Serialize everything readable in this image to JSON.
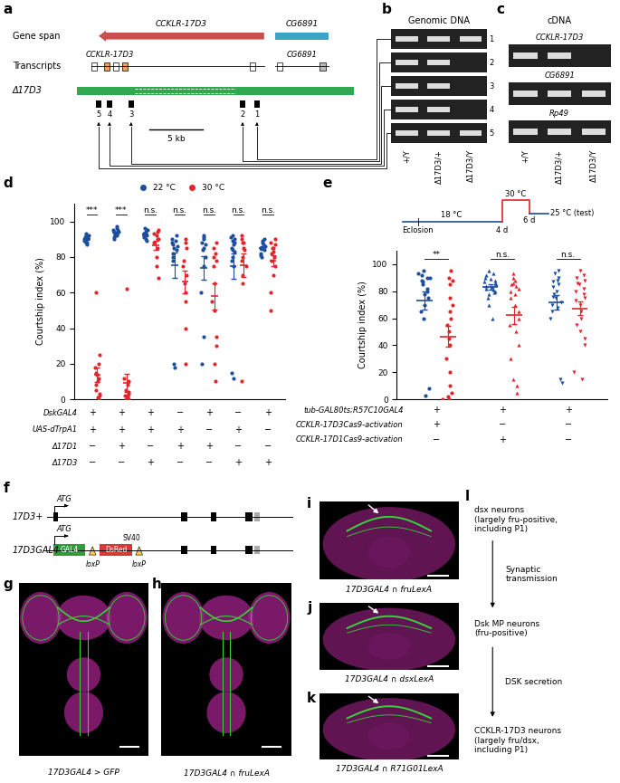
{
  "panels": {
    "a": {
      "label": "a",
      "gene_span_label": "Gene span",
      "genes": [
        "CCKLR-17D3",
        "CG6891"
      ],
      "transcripts_label": "Transcripts",
      "transcript_genes": [
        "CCKLR-17D3",
        "CG6891"
      ],
      "deletion_label": "Δ17D3",
      "scale_bar": "5 kb",
      "primers": [
        "5",
        "4",
        "3",
        "2",
        "1"
      ]
    },
    "b": {
      "label": "b",
      "title": "Genomic DNA",
      "rows": [
        "1",
        "2",
        "3",
        "4",
        "5"
      ],
      "lanes": [
        "+/Y",
        "Δ17D3/+",
        "Δ17D3/Y"
      ],
      "bands": [
        [
          1,
          1,
          1
        ],
        [
          1,
          1,
          0
        ],
        [
          1,
          1,
          0
        ],
        [
          1,
          1,
          0
        ],
        [
          1,
          1,
          1
        ]
      ]
    },
    "c": {
      "label": "c",
      "title": "cDNA",
      "rows": [
        "CCKLR-17D3",
        "CG6891",
        "Rp49"
      ],
      "lanes": [
        "+/Y",
        "Δ17D3/+",
        "Δ17D3/Y"
      ],
      "bands": [
        [
          1,
          1,
          0
        ],
        [
          1,
          1,
          1
        ],
        [
          1,
          1,
          1
        ]
      ]
    },
    "f": {
      "label": "f",
      "wild_type": "17D3+",
      "knock_in": "17D3GAL4",
      "atg": "ATG",
      "gal4": "GAL4",
      "dsred": "DsRed",
      "sv40": "SV40",
      "loxp": "loxP"
    },
    "images": [
      {
        "label": "g",
        "caption": "17D3GAL4 > GFP"
      },
      {
        "label": "h",
        "caption": "17D3GAL4 ∩ fruLexA"
      },
      {
        "label": "i",
        "caption": "17D3GAL4 ∩ fruLexA"
      },
      {
        "label": "j",
        "caption": "17D3GAL4 ∩ dsxLexA"
      },
      {
        "label": "k",
        "caption": "17D3GAL4 ∩ R71G01LexA"
      }
    ],
    "l": {
      "label": "l",
      "nodes": [
        "dsx neurons\n(largely fru-positive,\nincluding P1)",
        "Dsk MP neurons\n(fru-positive)",
        "CCKLR-17D3 neurons\n(largely fru/dsx,\nincluding P1)"
      ],
      "edges": [
        "Synaptic\ntransmission",
        "DSK secretion"
      ]
    }
  },
  "chart_data": [
    {
      "type": "strip",
      "panel_label": "d",
      "ylabel": "Courtship index (%)",
      "ylim": [
        0,
        110
      ],
      "yticks": [
        0,
        20,
        40,
        60,
        80,
        100
      ],
      "tick_labels": "y",
      "series_names": [
        "22 °C",
        "30 °C"
      ],
      "colors": [
        "#1d4e9e",
        "#e3242b"
      ],
      "marker": "circle",
      "legend": "upper center",
      "groups": [
        {
          "significance": "***",
          "series": [
            {
              "values": [
                90,
                91,
                92,
                88,
                89,
                93,
                87,
                90,
                91,
                89,
                92,
                90,
                88,
                91
              ],
              "mean": 90.1,
              "sem": 0.4
            },
            {
              "values": [
                0,
                2,
                5,
                10,
                12,
                15,
                18,
                25,
                60,
                8,
                3,
                1,
                14,
                20
              ],
              "mean": 13.8,
              "sem": 4.2
            }
          ]
        },
        {
          "significance": "***",
          "series": [
            {
              "values": [
                95,
                93,
                92,
                90,
                97,
                94,
                91,
                96,
                93,
                95,
                92,
                94
              ],
              "mean": 93.5,
              "sem": 0.6
            },
            {
              "values": [
                0,
                1,
                2,
                3,
                5,
                8,
                10,
                12,
                4,
                0,
                62,
                2
              ],
              "mean": 9.1,
              "sem": 5.0
            }
          ]
        },
        {
          "significance": "n.s.",
          "series": [
            {
              "values": [
                92,
                93,
                95,
                91,
                94,
                96,
                90,
                92,
                93,
                95,
                89
              ],
              "mean": 92.7,
              "sem": 0.6
            },
            {
              "values": [
                92,
                90,
                88,
                85,
                93,
                95,
                80,
                75,
                68,
                90,
                94
              ],
              "mean": 86.4,
              "sem": 2.6
            }
          ]
        },
        {
          "significance": "n.s.",
          "series": [
            {
              "values": [
                88,
                85,
                90,
                82,
                78,
                92,
                87,
                20,
                18,
                84,
                86,
                89,
                80
              ],
              "mean": 75.3,
              "sem": 7.1
            },
            {
              "values": [
                90,
                85,
                75,
                70,
                65,
                60,
                55,
                40,
                20,
                88,
                78
              ],
              "mean": 66.0,
              "sem": 6.5
            }
          ]
        },
        {
          "significance": "n.s.",
          "series": [
            {
              "values": [
                90,
                88,
                92,
                85,
                80,
                75,
                60,
                35,
                20,
                87,
                91,
                84
              ],
              "mean": 73.9,
              "sem": 6.6
            },
            {
              "values": [
                88,
                85,
                80,
                75,
                65,
                55,
                50,
                35,
                20,
                10,
                30,
                78,
                82
              ],
              "mean": 57.9,
              "sem": 7.3
            }
          ]
        },
        {
          "significance": "n.s.",
          "series": [
            {
              "values": [
                90,
                88,
                85,
                92,
                80,
                78,
                75,
                15,
                12,
                87,
                91,
                89,
                84,
                83
              ],
              "mean": 74.9,
              "sem": 7.0
            },
            {
              "values": [
                92,
                90,
                88,
                85,
                84,
                80,
                78,
                75,
                70,
                10,
                65,
                88
              ],
              "mean": 75.4,
              "sem": 6.4
            }
          ]
        },
        {
          "significance": "n.s.",
          "series": [
            {
              "values": [
                85,
                88,
                90,
                82,
                80,
                87,
                84,
                86,
                81,
                89
              ],
              "mean": 85.2,
              "sem": 1.0
            },
            {
              "values": [
                90,
                88,
                85,
                82,
                80,
                75,
                70,
                60,
                50,
                85,
                87,
                78,
                83
              ],
              "mean": 77.9,
              "sem": 3.3
            }
          ]
        }
      ],
      "genotype_rows": [
        {
          "label": "DskGAL4",
          "signs": [
            "+",
            "+",
            "+",
            "−",
            "+",
            "−",
            "+"
          ]
        },
        {
          "label": "UAS-dTrpA1",
          "signs": [
            "+",
            "+",
            "+",
            "+",
            "−",
            "+",
            "−"
          ]
        },
        {
          "label": "Δ17D1",
          "signs": [
            "−",
            "+",
            "−",
            "+",
            "+",
            "−",
            "−"
          ]
        },
        {
          "label": "Δ17D3",
          "signs": [
            "−",
            "−",
            "+",
            "−",
            "−",
            "+",
            "+"
          ]
        }
      ]
    },
    {
      "type": "strip",
      "panel_label": "e",
      "ylabel": "Courtship index (%)",
      "ylim": [
        0,
        110
      ],
      "yticks": [
        0,
        20,
        40,
        60,
        80,
        100
      ],
      "tick_labels": "y",
      "colors": [
        "#1d4e9e",
        "#e3242b"
      ],
      "timeline": {
        "start_temp": "18 °C",
        "eclosion": "Eclosion",
        "heat_temp": "30 °C",
        "heat_start": "4 d",
        "heat_end": "6 d",
        "test_temp": "25 °C (test)"
      },
      "groups": [
        {
          "significance": "**",
          "marker": "circle",
          "series": [
            {
              "values": [
                95,
                92,
                90,
                88,
                85,
                80,
                78,
                75,
                70,
                65,
                60,
                8,
                3,
                90,
                93,
                87,
                82
              ],
              "mean": 73.0,
              "sem": 6.5
            },
            {
              "values": [
                95,
                90,
                85,
                70,
                60,
                50,
                45,
                40,
                30,
                20,
                10,
                5,
                2,
                0,
                0,
                88,
                75,
                65,
                55
              ],
              "mean": 46.6,
              "sem": 7.5
            }
          ]
        },
        {
          "significance": "n.s.",
          "marker": "triangle_up",
          "series": [
            {
              "values": [
                95,
                93,
                90,
                88,
                86,
                85,
                84,
                82,
                80,
                78,
                75,
                70,
                60,
                92,
                89,
                83,
                81,
                87,
                79
              ],
              "mean": 83.0,
              "sem": 1.8
            },
            {
              "values": [
                93,
                90,
                88,
                85,
                82,
                80,
                78,
                75,
                70,
                65,
                60,
                55,
                50,
                40,
                30,
                15,
                10,
                5,
                86,
                84
              ],
              "mean": 62.1,
              "sem": 6.3
            }
          ]
        },
        {
          "significance": "n.s.",
          "marker": "triangle_down",
          "series": [
            {
              "values": [
                95,
                93,
                90,
                88,
                85,
                80,
                78,
                75,
                72,
                70,
                65,
                60,
                15,
                12,
                87,
                83,
                76,
                68
              ],
              "mean": 71.8,
              "sem": 5.4
            },
            {
              "values": [
                95,
                92,
                90,
                88,
                85,
                82,
                78,
                75,
                70,
                65,
                60,
                55,
                50,
                45,
                40,
                20,
                15,
                86,
                80,
                73
              ],
              "mean": 67.2,
              "sem": 5.1
            }
          ]
        }
      ],
      "genotype_rows": [
        {
          "label": "tub-GAL80ts;R57C10GAL4",
          "signs": [
            "+",
            "+",
            "+"
          ]
        },
        {
          "label": "CCKLR-17D3Cas9-activation",
          "signs": [
            "+",
            "−",
            "−"
          ]
        },
        {
          "label": "CCKLR-17D1Cas9-activation",
          "signs": [
            "−",
            "+",
            "−"
          ]
        }
      ]
    }
  ]
}
